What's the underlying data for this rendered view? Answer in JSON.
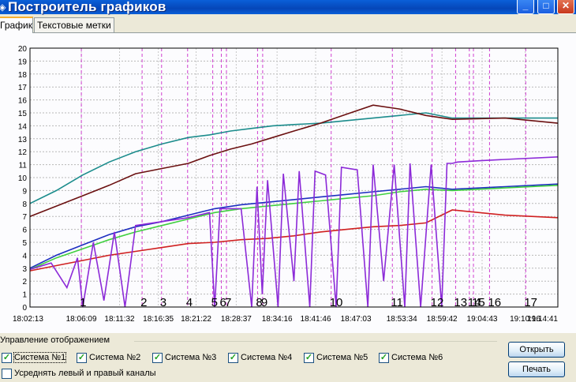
{
  "window": {
    "title": "Построитель графиков"
  },
  "tabs": [
    {
      "label": "График"
    },
    {
      "label": "Текстовые метки"
    }
  ],
  "controls": {
    "group_title": "Управление отображением",
    "systems": [
      {
        "label": "Система №1",
        "checked": true
      },
      {
        "label": "Система №2",
        "checked": true
      },
      {
        "label": "Система №3",
        "checked": true
      },
      {
        "label": "Система №4",
        "checked": true
      },
      {
        "label": "Система №5",
        "checked": true
      },
      {
        "label": "Система №6",
        "checked": true
      }
    ],
    "average": {
      "label": "Усреднять левый и правый каналы",
      "checked": false
    },
    "open_label": "Открыть",
    "print_label": "Печать"
  },
  "chart_data": {
    "type": "line",
    "ylim": [
      0,
      20
    ],
    "yticks": [
      "0",
      "1",
      "2",
      "3",
      "4",
      "5",
      "6",
      "7",
      "8",
      "9",
      "10",
      "11",
      "12",
      "13",
      "14",
      "15",
      "16",
      "17",
      "18",
      "19",
      "20"
    ],
    "xticks": [
      "18:02:13",
      "18:06:09",
      "18:11:32",
      "18:16:35",
      "18:21:22",
      "18:28:37",
      "18:34:16",
      "18:41:46",
      "18:47:03",
      "18:53:34",
      "18:59:42",
      "19:04:43",
      "19:10:16",
      "19:14:41"
    ],
    "x_label_fractions": [
      0,
      0.0973,
      0.1697,
      0.2431,
      0.3147,
      0.3907,
      0.4681,
      0.5412,
      0.6175,
      0.7043,
      0.7805,
      0.8565,
      0.9381,
      1.0
    ],
    "markers": [
      {
        "label": "1",
        "pos": 0.0973
      },
      {
        "label": "2",
        "pos": 0.2124
      },
      {
        "label": "3",
        "pos": 0.2493
      },
      {
        "label": "4",
        "pos": 0.2986
      },
      {
        "label": "5",
        "pos": 0.3462
      },
      {
        "label": "6",
        "pos": 0.3625
      },
      {
        "label": "7",
        "pos": 0.3722
      },
      {
        "label": "8",
        "pos": 0.4311
      },
      {
        "label": "9",
        "pos": 0.4408
      },
      {
        "label": "10",
        "pos": 0.5706
      },
      {
        "label": "11",
        "pos": 0.6865
      },
      {
        "label": "12",
        "pos": 0.7618
      },
      {
        "label": "13",
        "pos": 0.8063
      },
      {
        "label": "14",
        "pos": 0.8323
      },
      {
        "label": "15",
        "pos": 0.8401
      },
      {
        "label": "16",
        "pos": 0.8706
      },
      {
        "label": "17",
        "pos": 0.9392
      }
    ],
    "grid": true,
    "series": [
      {
        "color": "#1b8c8c",
        "points": [
          [
            0,
            8.0
          ],
          [
            0.05,
            9.0
          ],
          [
            0.1,
            10.2
          ],
          [
            0.15,
            11.2
          ],
          [
            0.2,
            12.0
          ],
          [
            0.25,
            12.6
          ],
          [
            0.3,
            13.1
          ],
          [
            0.34,
            13.3
          ],
          [
            0.38,
            13.6
          ],
          [
            0.42,
            13.8
          ],
          [
            0.46,
            14.0
          ],
          [
            0.5,
            14.1
          ],
          [
            0.55,
            14.2
          ],
          [
            0.6,
            14.4
          ],
          [
            0.65,
            14.6
          ],
          [
            0.7,
            14.8
          ],
          [
            0.75,
            15.0
          ],
          [
            0.8,
            14.6
          ],
          [
            0.9,
            14.6
          ],
          [
            1.0,
            14.6
          ]
        ]
      },
      {
        "color": "#6b1010",
        "points": [
          [
            0,
            7.0
          ],
          [
            0.05,
            7.8
          ],
          [
            0.1,
            8.6
          ],
          [
            0.15,
            9.4
          ],
          [
            0.2,
            10.3
          ],
          [
            0.25,
            10.7
          ],
          [
            0.3,
            11.1
          ],
          [
            0.34,
            11.7
          ],
          [
            0.38,
            12.2
          ],
          [
            0.42,
            12.6
          ],
          [
            0.46,
            13.1
          ],
          [
            0.5,
            13.6
          ],
          [
            0.55,
            14.2
          ],
          [
            0.6,
            14.9
          ],
          [
            0.65,
            15.6
          ],
          [
            0.7,
            15.3
          ],
          [
            0.75,
            14.8
          ],
          [
            0.8,
            14.5
          ],
          [
            0.9,
            14.6
          ],
          [
            1.0,
            14.2
          ]
        ]
      },
      {
        "color": "#1e2fc0",
        "points": [
          [
            0,
            3.0
          ],
          [
            0.05,
            4.0
          ],
          [
            0.1,
            4.8
          ],
          [
            0.15,
            5.6
          ],
          [
            0.2,
            6.2
          ],
          [
            0.25,
            6.6
          ],
          [
            0.3,
            7.1
          ],
          [
            0.35,
            7.6
          ],
          [
            0.4,
            7.9
          ],
          [
            0.45,
            8.1
          ],
          [
            0.5,
            8.3
          ],
          [
            0.55,
            8.5
          ],
          [
            0.6,
            8.7
          ],
          [
            0.65,
            8.9
          ],
          [
            0.7,
            9.1
          ],
          [
            0.75,
            9.3
          ],
          [
            0.8,
            9.1
          ],
          [
            0.9,
            9.3
          ],
          [
            1.0,
            9.5
          ]
        ]
      },
      {
        "color": "#40d040",
        "points": [
          [
            0,
            2.9
          ],
          [
            0.05,
            3.8
          ],
          [
            0.1,
            4.5
          ],
          [
            0.15,
            5.2
          ],
          [
            0.2,
            5.8
          ],
          [
            0.25,
            6.3
          ],
          [
            0.3,
            6.8
          ],
          [
            0.35,
            7.3
          ],
          [
            0.4,
            7.6
          ],
          [
            0.45,
            7.8
          ],
          [
            0.5,
            8.0
          ],
          [
            0.55,
            8.2
          ],
          [
            0.6,
            8.4
          ],
          [
            0.65,
            8.6
          ],
          [
            0.7,
            8.9
          ],
          [
            0.75,
            9.1
          ],
          [
            0.8,
            9.0
          ],
          [
            0.9,
            9.2
          ],
          [
            1.0,
            9.4
          ]
        ]
      },
      {
        "color": "#d02020",
        "points": [
          [
            0,
            2.8
          ],
          [
            0.05,
            3.2
          ],
          [
            0.1,
            3.6
          ],
          [
            0.15,
            4.0
          ],
          [
            0.2,
            4.3
          ],
          [
            0.25,
            4.6
          ],
          [
            0.3,
            4.9
          ],
          [
            0.35,
            5.0
          ],
          [
            0.4,
            5.2
          ],
          [
            0.45,
            5.3
          ],
          [
            0.5,
            5.5
          ],
          [
            0.55,
            5.8
          ],
          [
            0.6,
            6.0
          ],
          [
            0.65,
            6.2
          ],
          [
            0.7,
            6.3
          ],
          [
            0.75,
            6.5
          ],
          [
            0.8,
            7.5
          ],
          [
            0.9,
            7.1
          ],
          [
            1.0,
            6.9
          ]
        ]
      },
      {
        "color": "#8c2ad8",
        "points": [
          [
            0,
            2.9
          ],
          [
            0.04,
            3.4
          ],
          [
            0.07,
            1.5
          ],
          [
            0.09,
            3.8
          ],
          [
            0.1,
            0.0
          ],
          [
            0.12,
            5.0
          ],
          [
            0.14,
            0.5
          ],
          [
            0.16,
            5.8
          ],
          [
            0.18,
            0.0
          ],
          [
            0.2,
            6.3
          ],
          [
            0.3,
            6.9
          ],
          [
            0.34,
            7.3
          ],
          [
            0.35,
            0.0
          ],
          [
            0.36,
            7.6
          ],
          [
            0.4,
            7.6
          ],
          [
            0.42,
            0.0
          ],
          [
            0.43,
            9.3
          ],
          [
            0.44,
            1.0
          ],
          [
            0.45,
            9.8
          ],
          [
            0.47,
            0.0
          ],
          [
            0.48,
            10.3
          ],
          [
            0.5,
            2.0
          ],
          [
            0.51,
            10.5
          ],
          [
            0.53,
            0.0
          ],
          [
            0.54,
            10.5
          ],
          [
            0.56,
            10.2
          ],
          [
            0.58,
            0.0
          ],
          [
            0.59,
            10.8
          ],
          [
            0.62,
            10.6
          ],
          [
            0.64,
            0.0
          ],
          [
            0.65,
            11.0
          ],
          [
            0.67,
            2.0
          ],
          [
            0.69,
            11.0
          ],
          [
            0.71,
            0.0
          ],
          [
            0.72,
            11.1
          ],
          [
            0.74,
            0.0
          ],
          [
            0.76,
            11.0
          ],
          [
            0.78,
            0.0
          ],
          [
            0.79,
            11.1
          ],
          [
            0.8,
            11.1
          ],
          [
            0.81,
            11.2
          ],
          [
            0.85,
            11.3
          ],
          [
            0.9,
            11.4
          ],
          [
            1.0,
            11.6
          ]
        ]
      }
    ]
  }
}
